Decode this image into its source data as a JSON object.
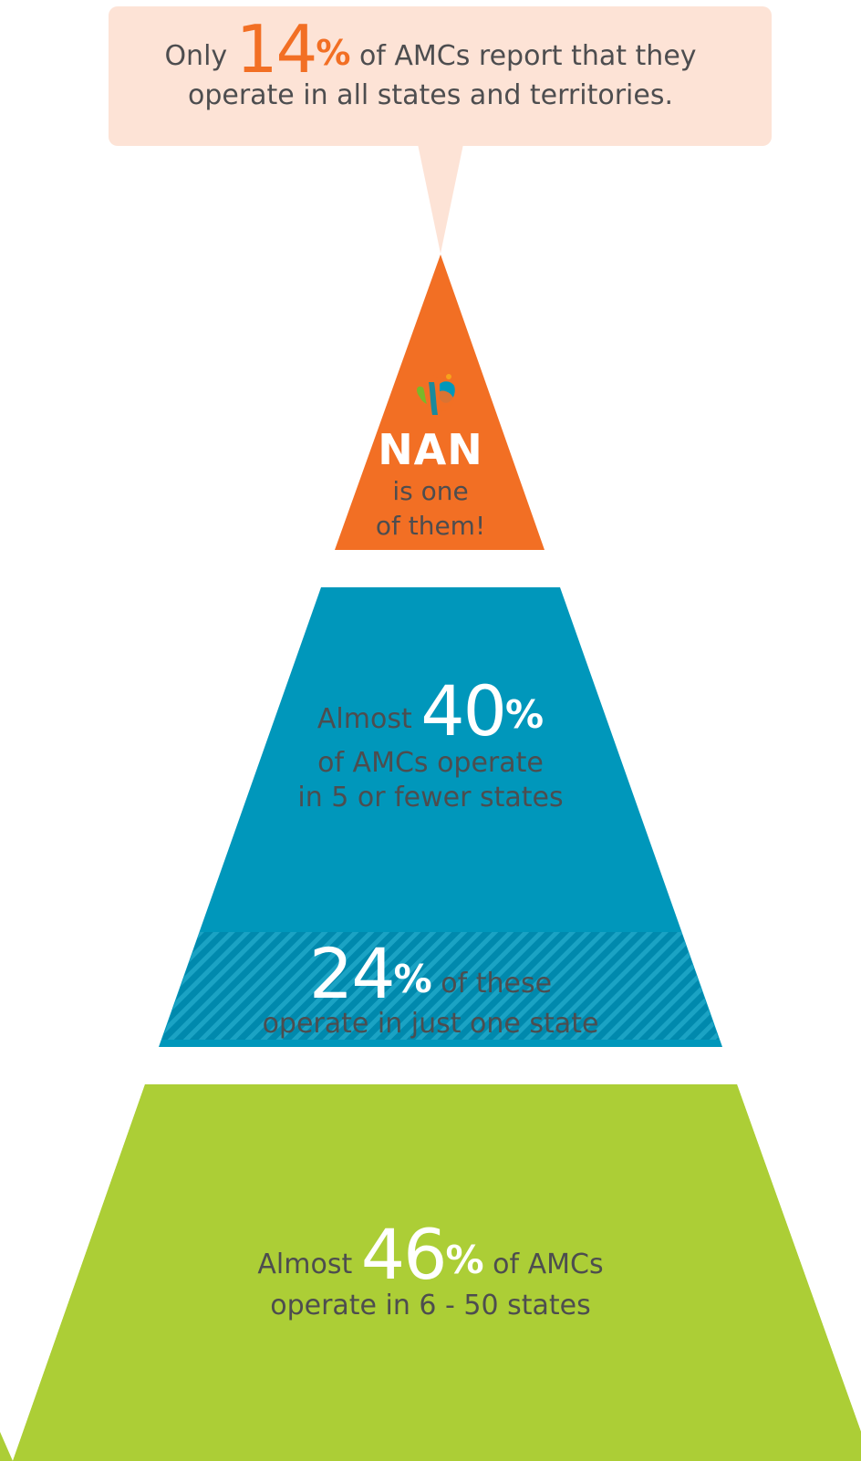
{
  "colors": {
    "banner_bg": "#fde3d6",
    "accent_orange": "#f26f24",
    "tier_blue": "#0097bb",
    "tier_green": "#acce36",
    "text_gray": "#4d4d4f"
  },
  "banner": {
    "prefix": "Only",
    "value": "14",
    "pct": "%",
    "suffix": "of AMCs report that they",
    "line2": "operate in all states and territories."
  },
  "top_tier": {
    "logo_icon": "nan-logo-icon",
    "title": "NAN",
    "line1": "is one",
    "line2": "of them!"
  },
  "middle_tier": {
    "prefix": "Almost",
    "value": "40",
    "pct": "%",
    "line2": "of AMCs operate",
    "line3": "in 5 or fewer states"
  },
  "sub_tier": {
    "value": "24",
    "pct": "%",
    "suffix": "of these",
    "line2": "operate in just one state"
  },
  "bottom_tier": {
    "prefix": "Almost",
    "value": "46",
    "pct": "%",
    "suffix": "of AMCs",
    "line2": "operate in 6 - 50 states"
  }
}
